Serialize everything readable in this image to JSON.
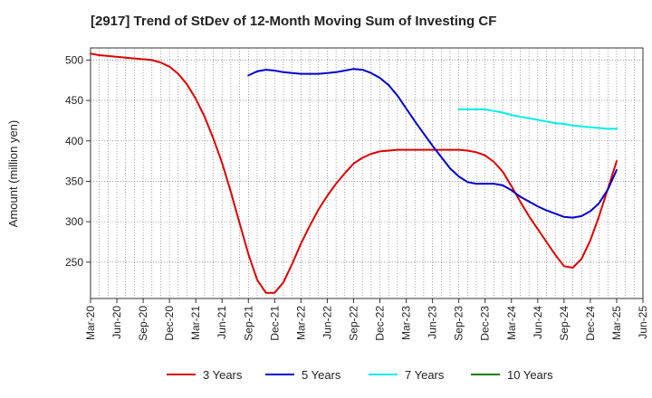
{
  "chart_data": {
    "type": "line",
    "title": "[2917]  Trend of StDev of 12-Month Moving Sum of Investing CF",
    "ylabel": "Amount (million yen)",
    "xlabel": "",
    "ylim": [
      205,
      515
    ],
    "y_ticks": [
      250,
      300,
      350,
      400,
      450,
      500
    ],
    "grid": true,
    "legend_position": "bottom",
    "x_ticks": [
      "Mar-20",
      "Jun-20",
      "Sep-20",
      "Dec-20",
      "Mar-21",
      "Jun-21",
      "Sep-21",
      "Dec-21",
      "Mar-22",
      "Jun-22",
      "Sep-22",
      "Dec-22",
      "Mar-23",
      "Jun-23",
      "Sep-23",
      "Dec-23",
      "Mar-24",
      "Jun-24",
      "Sep-24",
      "Dec-24",
      "Mar-25",
      "Jun-25"
    ],
    "series": [
      {
        "name": "3 Years",
        "color": "#dd0000",
        "points": [
          [
            "Mar-20",
            508
          ],
          [
            "Apr-20",
            506
          ],
          [
            "May-20",
            505
          ],
          [
            "Jun-20",
            504
          ],
          [
            "Jul-20",
            503
          ],
          [
            "Aug-20",
            502
          ],
          [
            "Sep-20",
            501
          ],
          [
            "Oct-20",
            500
          ],
          [
            "Nov-20",
            497
          ],
          [
            "Dec-20",
            492
          ],
          [
            "Jan-21",
            483
          ],
          [
            "Feb-21",
            470
          ],
          [
            "Mar-21",
            452
          ],
          [
            "Apr-21",
            430
          ],
          [
            "May-21",
            403
          ],
          [
            "Jun-21",
            373
          ],
          [
            "Jul-21",
            337
          ],
          [
            "Aug-21",
            298
          ],
          [
            "Sep-21",
            260
          ],
          [
            "Oct-21",
            228
          ],
          [
            "Nov-21",
            212
          ],
          [
            "Dec-21",
            212
          ],
          [
            "Jan-22",
            225
          ],
          [
            "Feb-22",
            248
          ],
          [
            "Mar-22",
            273
          ],
          [
            "Apr-22",
            295
          ],
          [
            "May-22",
            315
          ],
          [
            "Jun-22",
            332
          ],
          [
            "Jul-22",
            347
          ],
          [
            "Aug-22",
            360
          ],
          [
            "Sep-22",
            372
          ],
          [
            "Oct-22",
            379
          ],
          [
            "Nov-22",
            384
          ],
          [
            "Dec-22",
            387
          ],
          [
            "Jan-23",
            388
          ],
          [
            "Feb-23",
            389
          ],
          [
            "Mar-23",
            389
          ],
          [
            "Apr-23",
            389
          ],
          [
            "May-23",
            389
          ],
          [
            "Jun-23",
            389
          ],
          [
            "Jul-23",
            389
          ],
          [
            "Aug-23",
            389
          ],
          [
            "Sep-23",
            389
          ],
          [
            "Oct-23",
            388
          ],
          [
            "Nov-23",
            386
          ],
          [
            "Dec-23",
            382
          ],
          [
            "Jan-24",
            374
          ],
          [
            "Feb-24",
            362
          ],
          [
            "Mar-24",
            344
          ],
          [
            "Apr-24",
            325
          ],
          [
            "May-24",
            307
          ],
          [
            "Jun-24",
            291
          ],
          [
            "Jul-24",
            275
          ],
          [
            "Aug-24",
            259
          ],
          [
            "Sep-24",
            245
          ],
          [
            "Oct-24",
            243
          ],
          [
            "Nov-24",
            254
          ],
          [
            "Dec-24",
            277
          ],
          [
            "Jan-25",
            307
          ],
          [
            "Feb-25",
            341
          ],
          [
            "Mar-25",
            375
          ]
        ]
      },
      {
        "name": "5 Years",
        "color": "#0000cc",
        "points": [
          [
            "Sep-21",
            481
          ],
          [
            "Oct-21",
            486
          ],
          [
            "Nov-21",
            488
          ],
          [
            "Dec-21",
            487
          ],
          [
            "Jan-22",
            485
          ],
          [
            "Feb-22",
            484
          ],
          [
            "Mar-22",
            483
          ],
          [
            "Apr-22",
            483
          ],
          [
            "May-22",
            483
          ],
          [
            "Jun-22",
            484
          ],
          [
            "Jul-22",
            485
          ],
          [
            "Aug-22",
            487
          ],
          [
            "Sep-22",
            489
          ],
          [
            "Oct-22",
            488
          ],
          [
            "Nov-22",
            484
          ],
          [
            "Dec-22",
            478
          ],
          [
            "Jan-23",
            469
          ],
          [
            "Feb-23",
            456
          ],
          [
            "Mar-23",
            440
          ],
          [
            "Apr-23",
            424
          ],
          [
            "May-23",
            409
          ],
          [
            "Jun-23",
            394
          ],
          [
            "Jul-23",
            380
          ],
          [
            "Aug-23",
            366
          ],
          [
            "Sep-23",
            356
          ],
          [
            "Oct-23",
            349
          ],
          [
            "Nov-23",
            347
          ],
          [
            "Dec-23",
            347
          ],
          [
            "Jan-24",
            347
          ],
          [
            "Feb-24",
            345
          ],
          [
            "Mar-24",
            339
          ],
          [
            "Apr-24",
            331
          ],
          [
            "May-24",
            325
          ],
          [
            "Jun-24",
            319
          ],
          [
            "Jul-24",
            314
          ],
          [
            "Aug-24",
            310
          ],
          [
            "Sep-24",
            306
          ],
          [
            "Oct-24",
            305
          ],
          [
            "Nov-24",
            307
          ],
          [
            "Dec-24",
            313
          ],
          [
            "Jan-25",
            323
          ],
          [
            "Feb-25",
            340
          ],
          [
            "Mar-25",
            364
          ]
        ]
      },
      {
        "name": "7 Years",
        "color": "#00eeee",
        "points": [
          [
            "Sep-23",
            439
          ],
          [
            "Oct-23",
            439
          ],
          [
            "Nov-23",
            439
          ],
          [
            "Dec-23",
            439
          ],
          [
            "Jan-24",
            437
          ],
          [
            "Feb-24",
            435
          ],
          [
            "Mar-24",
            432
          ],
          [
            "Apr-24",
            430
          ],
          [
            "May-24",
            428
          ],
          [
            "Jun-24",
            426
          ],
          [
            "Jul-24",
            424
          ],
          [
            "Aug-24",
            422
          ],
          [
            "Sep-24",
            421
          ],
          [
            "Oct-24",
            419
          ],
          [
            "Nov-24",
            418
          ],
          [
            "Dec-24",
            417
          ],
          [
            "Jan-25",
            416
          ],
          [
            "Feb-25",
            415
          ],
          [
            "Mar-25",
            415
          ]
        ]
      },
      {
        "name": "10 Years",
        "color": "#008000",
        "points": []
      }
    ]
  }
}
